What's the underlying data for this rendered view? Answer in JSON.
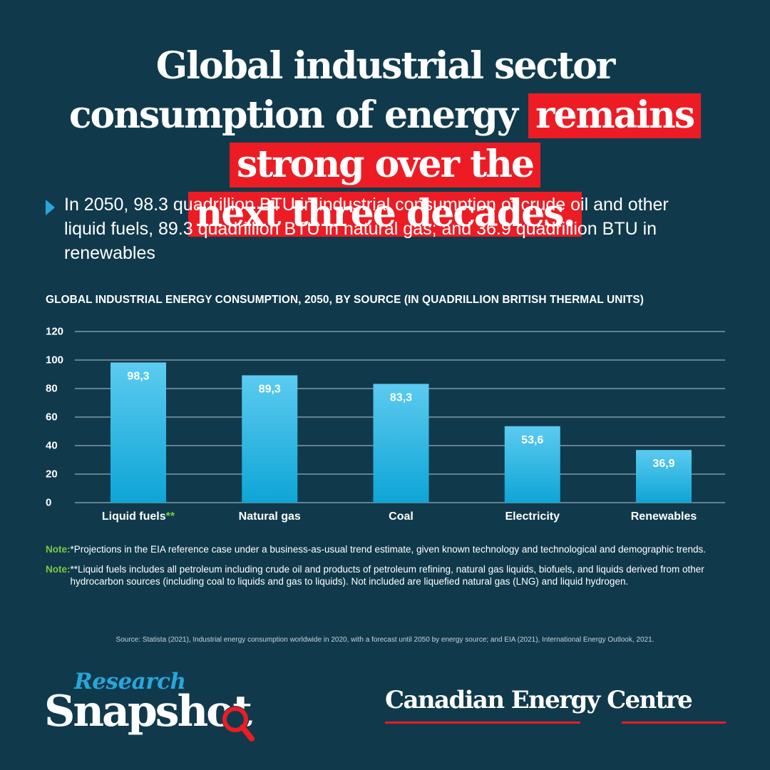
{
  "headline": {
    "part1": "Global industrial sector consumption of energy",
    "highlight_line1": "remains strong over the",
    "highlight_line2": "next three decades."
  },
  "summary": "In 2050, 98.3 quadrillion BTU in industrial consumption of crude oil and other liquid fuels, 89.3 quadrillion BTU in natural gas; and 36.9 quadrillion BTU in renewables",
  "chart_data": {
    "type": "bar",
    "title": "GLOBAL INDUSTRIAL ENERGY CONSUMPTION, 2050, BY SOURCE (IN QUADRILLION BRITISH THERMAL UNITS)",
    "categories": [
      "Liquid fuels",
      "Natural gas",
      "Coal",
      "Electricity",
      "Renewables"
    ],
    "category_marks": [
      "**",
      "",
      "",
      "",
      ""
    ],
    "values": [
      98.3,
      89.3,
      83.3,
      53.6,
      36.9
    ],
    "value_labels": [
      "98,3",
      "89,3",
      "83,3",
      "53,6",
      "36,9"
    ],
    "yticks": [
      0,
      20,
      40,
      60,
      80,
      100,
      120
    ],
    "ylim": [
      0,
      120
    ],
    "grid": true,
    "xlabel": "",
    "ylabel": "",
    "colors": {
      "bar_top": "#5ccbf0",
      "bar_bottom": "#0ea5d6",
      "grid": "#b9c8cf",
      "mark": "#7ac943"
    }
  },
  "notes": [
    {
      "label": "Note:",
      "text": "*Projections in the EIA reference case under a business-as-usual trend estimate, given known technology and technological and demographic trends."
    },
    {
      "label": "Note:",
      "text": "**Liquid fuels includes all petroleum including crude oil and products of petroleum refining, natural gas liquids, biofuels, and liquids derived from other hydrocarbon sources (including coal to liquids and gas to liquids). Not included are liquefied natural gas (LNG) and liquid hydrogen."
    }
  ],
  "source": "Source: Statista (2021), Industrial energy consumption worldwide in 2020, with a forecast until 2050 by energy source; and EIA (2021), International  Energy Outlook, 2021.",
  "logos": {
    "research_snapshot": {
      "top": "Research",
      "bottom": "Snapshot"
    },
    "cec": "Canadian Energy Centre"
  },
  "colors": {
    "background": "#103a4c",
    "highlight": "#ed1c24",
    "accent_blue": "#29a6d9",
    "note_green": "#7ac943"
  },
  "icons": {
    "bullet": "triangle-bullet-icon",
    "magnifier": "magnifying-glass-icon"
  }
}
